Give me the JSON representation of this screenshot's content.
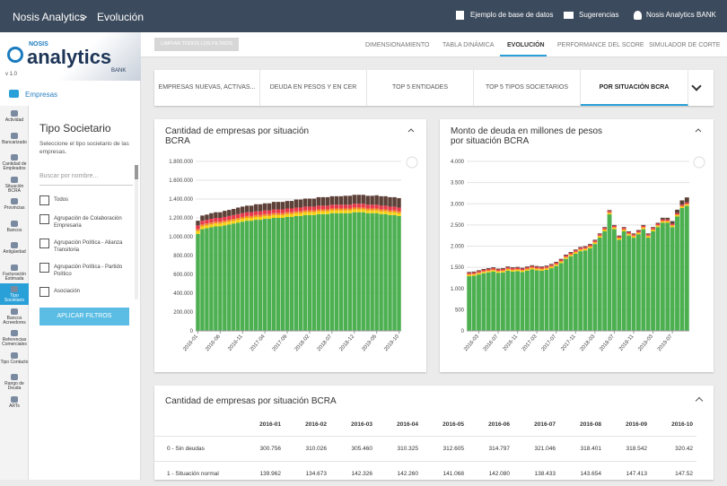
{
  "header": {
    "brand": "Nosis Analytics",
    "separator": ">",
    "page": "Evolución",
    "links": [
      "Ejemplo de base de datos",
      "Sugerencias",
      "Nosis Analytics BANK"
    ]
  },
  "logo": {
    "top": "NOSIS",
    "main": "analytics",
    "sub": "BANK",
    "version": "v 1.0"
  },
  "sidebar": {
    "section": "Empresas",
    "items": [
      "Actividad",
      "Bancarizado",
      "Cantidad de Empleados",
      "Situación BCRA",
      "Provincias",
      "Bancos",
      "Antigüedad",
      "Facturación Estimada",
      "Tipo Societario",
      "Bancos Acreedores",
      "Referencias Comerciales",
      "Tipo Contacto",
      "Rango de Deuda",
      "ARTs"
    ],
    "active": 8
  },
  "filter": {
    "title": "Tipo Societario",
    "description": "Seleccione el tipo societario de las empresas.",
    "search": "Buscar por nombre...",
    "options": [
      "Todos",
      "Agrupación de Colaboración Empresaria",
      "Agrupación Política - Alianza Transitoria",
      "Agrupación Política - Partido Político",
      "Asociación"
    ],
    "apply": "APLICAR FILTROS"
  },
  "toolbar": {
    "clear": "LIMPIAR TODOS LOS FILTROS",
    "tabs": [
      "DIMENSIONAMIENTO",
      "TABLA DINÁMICA",
      "EVOLUCIÓN",
      "PERFORMANCE DEL SCORE",
      "SIMULADOR DE CORTE"
    ],
    "active": 2
  },
  "subtabs": {
    "items": [
      "EMPRESAS NUEVAS, ACTIVAS...",
      "DEUDA EN PESOS Y EN CER",
      "TOP 5 ENTIDADES",
      "TOP 5 TIPOS SOCIETARIOS",
      "POR SITUACIÓN BCRA"
    ],
    "active": 4
  },
  "chart_data": [
    {
      "type": "bar",
      "stacked": true,
      "title": "Cantidad de empresas por situación BCRA",
      "categories": [
        "2016-01",
        null,
        null,
        null,
        null,
        "2016-06",
        null,
        null,
        null,
        null,
        "2016-11",
        null,
        null,
        null,
        null,
        "2017-04",
        null,
        null,
        null,
        null,
        "2017-09",
        null,
        null,
        null,
        null,
        "2018-02",
        null,
        null,
        null,
        null,
        "2018-07",
        null,
        null,
        null,
        null,
        "2018-12",
        null,
        null,
        null,
        null,
        "2019-05",
        null,
        null,
        null,
        null,
        "2019-10"
      ],
      "series": [
        {
          "color": "#4caf50",
          "values": [
            1030000,
            1080000,
            1090000,
            1100000,
            1110000,
            1110000,
            1120000,
            1130000,
            1140000,
            1150000,
            1160000,
            1170000,
            1170000,
            1180000,
            1180000,
            1190000,
            1190000,
            1200000,
            1200000,
            1200000,
            1210000,
            1210000,
            1220000,
            1220000,
            1230000,
            1230000,
            1230000,
            1240000,
            1240000,
            1240000,
            1250000,
            1250000,
            1250000,
            1250000,
            1250000,
            1260000,
            1260000,
            1260000,
            1250000,
            1250000,
            1250000,
            1240000,
            1240000,
            1230000,
            1230000,
            1220000
          ]
        },
        {
          "color": "#f5d20f",
          "values": [
            30000,
            30000,
            30000,
            30000,
            30000,
            30000,
            30000,
            30000,
            30000,
            30000,
            30000,
            30000,
            30000,
            30000,
            30000,
            30000,
            30000,
            30000,
            30000,
            30000,
            30000,
            30000,
            30000,
            30000,
            30000,
            30000,
            30000,
            30000,
            30000,
            30000,
            30000,
            30000,
            30000,
            30000,
            30000,
            30000,
            30000,
            30000,
            30000,
            30000,
            30000,
            30000,
            30000,
            30000,
            30000,
            30000
          ]
        },
        {
          "color": "#f28a22",
          "values": [
            20000,
            20000,
            20000,
            20000,
            20000,
            20000,
            20000,
            20000,
            20000,
            20000,
            20000,
            20000,
            20000,
            20000,
            20000,
            20000,
            20000,
            20000,
            20000,
            20000,
            20000,
            20000,
            20000,
            20000,
            20000,
            20000,
            20000,
            20000,
            20000,
            20000,
            20000,
            20000,
            20000,
            20000,
            20000,
            20000,
            20000,
            20000,
            20000,
            20000,
            20000,
            20000,
            20000,
            20000,
            20000,
            20000
          ]
        },
        {
          "color": "#e8394a",
          "values": [
            40000,
            40000,
            40000,
            40000,
            40000,
            40000,
            40000,
            40000,
            40000,
            40000,
            40000,
            40000,
            40000,
            40000,
            40000,
            40000,
            40000,
            40000,
            40000,
            40000,
            40000,
            40000,
            40000,
            40000,
            40000,
            40000,
            40000,
            40000,
            40000,
            40000,
            40000,
            40000,
            40000,
            40000,
            40000,
            40000,
            40000,
            40000,
            40000,
            40000,
            40000,
            40000,
            40000,
            40000,
            40000,
            40000
          ]
        },
        {
          "color": "#5d4037",
          "values": [
            50000,
            55000,
            55000,
            60000,
            60000,
            60000,
            65000,
            65000,
            65000,
            70000,
            70000,
            70000,
            70000,
            75000,
            75000,
            75000,
            75000,
            80000,
            80000,
            80000,
            80000,
            80000,
            85000,
            85000,
            85000,
            85000,
            85000,
            90000,
            90000,
            90000,
            90000,
            90000,
            90000,
            95000,
            95000,
            95000,
            95000,
            95000,
            95000,
            95000,
            100000,
            100000,
            100000,
            100000,
            100000,
            100000
          ]
        }
      ],
      "ylim": [
        0,
        1800000
      ],
      "yticks": [
        0,
        {
          "value": 200000,
          "label": "200.000"
        },
        {
          "value": 400000,
          "label": "400.000"
        },
        {
          "value": 600000,
          "label": "600.000"
        },
        {
          "value": 800000,
          "label": "800.000"
        },
        {
          "value": 1000000,
          "label": "1.000.000"
        },
        {
          "value": 1200000,
          "label": "1.200.000"
        },
        {
          "value": 1400000,
          "label": "1.400.000"
        },
        {
          "value": 1600000,
          "label": "1.600.000"
        },
        {
          "value": 1800000,
          "label": "1.800.000"
        }
      ],
      "grid": true
    },
    {
      "type": "bar",
      "stacked": true,
      "title": "Monto de deuda en millones de pesos por situación BCRA",
      "categories": [
        null,
        null,
        "2016-03",
        null,
        null,
        null,
        "2016-07",
        null,
        null,
        null,
        "2016-11",
        null,
        null,
        null,
        "2017-03",
        null,
        null,
        null,
        "2017-07",
        null,
        null,
        null,
        "2017-11",
        null,
        null,
        null,
        "2018-03",
        null,
        null,
        null,
        "2018-07",
        null,
        null,
        null,
        "2018-11",
        null,
        null,
        null,
        "2019-03",
        null,
        null,
        null,
        "2019-07",
        null,
        null,
        null
      ],
      "series": [
        {
          "color": "#4caf50",
          "values": [
            1290,
            1300,
            1330,
            1360,
            1380,
            1400,
            1370,
            1380,
            1420,
            1400,
            1410,
            1390,
            1420,
            1450,
            1430,
            1420,
            1440,
            1480,
            1530,
            1600,
            1700,
            1760,
            1820,
            1880,
            1900,
            1950,
            2050,
            2200,
            2350,
            2750,
            2400,
            2150,
            2350,
            2250,
            2200,
            2280,
            2400,
            2200,
            2350,
            2450,
            2550,
            2550,
            2450,
            2700,
            2900,
            2950
          ]
        },
        {
          "color": "#f5d20f",
          "values": [
            30,
            30,
            30,
            30,
            30,
            30,
            30,
            30,
            30,
            30,
            30,
            30,
            30,
            30,
            30,
            30,
            30,
            30,
            30,
            30,
            30,
            30,
            30,
            30,
            30,
            30,
            30,
            30,
            30,
            30,
            30,
            30,
            30,
            30,
            30,
            30,
            30,
            30,
            30,
            30,
            30,
            30,
            30,
            30,
            30,
            30
          ]
        },
        {
          "color": "#f28a22",
          "values": [
            20,
            20,
            20,
            20,
            20,
            20,
            20,
            20,
            20,
            20,
            20,
            20,
            20,
            20,
            20,
            20,
            20,
            20,
            20,
            20,
            20,
            20,
            20,
            20,
            20,
            20,
            20,
            20,
            20,
            20,
            20,
            20,
            20,
            20,
            20,
            20,
            20,
            20,
            20,
            20,
            20,
            20,
            20,
            20,
            20,
            20
          ]
        },
        {
          "color": "#e8394a",
          "values": [
            30,
            30,
            30,
            30,
            30,
            30,
            30,
            30,
            30,
            30,
            30,
            30,
            30,
            30,
            30,
            30,
            30,
            30,
            30,
            30,
            30,
            30,
            30,
            30,
            30,
            30,
            30,
            30,
            30,
            30,
            30,
            30,
            30,
            30,
            30,
            30,
            30,
            30,
            30,
            30,
            30,
            30,
            30,
            30,
            30,
            30
          ]
        },
        {
          "color": "#5d4037",
          "values": [
            20,
            20,
            20,
            20,
            20,
            20,
            20,
            20,
            20,
            20,
            20,
            20,
            20,
            20,
            20,
            20,
            20,
            20,
            20,
            20,
            20,
            20,
            20,
            20,
            20,
            20,
            20,
            20,
            20,
            20,
            20,
            20,
            20,
            20,
            20,
            20,
            20,
            20,
            20,
            20,
            40,
            40,
            60,
            80,
            100,
            120
          ]
        }
      ],
      "ylim": [
        0,
        4000
      ],
      "yticks": [
        0,
        500,
        {
          "value": 1000,
          "label": "1.000"
        },
        {
          "value": 1500,
          "label": "1.500"
        },
        {
          "value": 2000,
          "label": "2.000"
        },
        {
          "value": 2500,
          "label": "2.500"
        },
        {
          "value": 3000,
          "label": "3.000"
        },
        {
          "value": 3500,
          "label": "3.500"
        },
        {
          "value": 4000,
          "label": "4.000"
        }
      ],
      "grid": true
    }
  ],
  "table": {
    "title": "Cantidad de empresas por situación BCRA",
    "columns": [
      "2016-01",
      "2016-02",
      "2016-03",
      "2016-04",
      "2016-05",
      "2016-06",
      "2016-07",
      "2016-08",
      "2016-09",
      "2016-10"
    ],
    "rows": [
      [
        "0 - Sin deudas",
        "300.756",
        "310.026",
        "305.460",
        "310.325",
        "312.605",
        "314.797",
        "321.046",
        "318.401",
        "318.542",
        "320.42"
      ],
      [
        "1 - Situación normal",
        "139.962",
        "134.673",
        "142.326",
        "142.260",
        "141.068",
        "142.080",
        "138.433",
        "143.654",
        "147.413",
        "147.52"
      ]
    ]
  }
}
